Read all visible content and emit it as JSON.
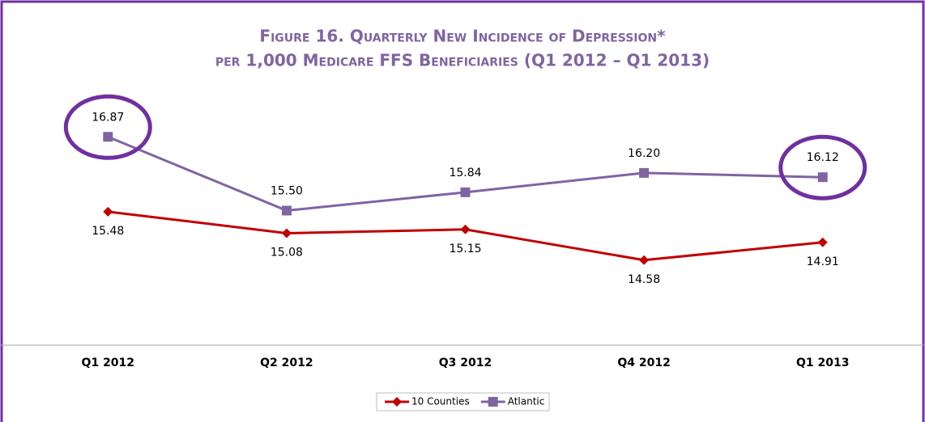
{
  "chart_data": {
    "type": "line",
    "title": "Figure 16. Quarterly New Incidence of Depression*",
    "subtitle": "per 1,000 Medicare FFS Beneficiaries (Q1 2012 – Q1 2013)",
    "categories": [
      "Q1 2012",
      "Q2 2012",
      "Q3 2012",
      "Q4 2012",
      "Q1 2013"
    ],
    "series": [
      {
        "name": "10 Counties",
        "color": "#c00000",
        "marker": "diamond",
        "values": [
          15.48,
          15.08,
          15.15,
          14.58,
          14.91
        ],
        "value_labels": [
          "15.48",
          "15.08",
          "15.15",
          "14.58",
          "14.91"
        ]
      },
      {
        "name": "Atlantic",
        "color": "#8064a2",
        "marker": "square",
        "values": [
          16.87,
          15.5,
          15.84,
          16.2,
          16.12
        ],
        "value_labels": [
          "16.87",
          "15.50",
          "15.84",
          "16.20",
          "16.12"
        ]
      }
    ],
    "ylim": [
      13,
      18
    ],
    "legend": "bottom"
  }
}
